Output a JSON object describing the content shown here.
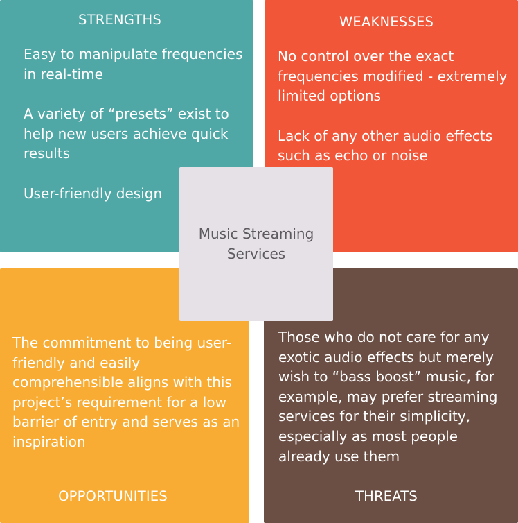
{
  "center": {
    "label": "Music Streaming Services"
  },
  "quadrants": {
    "strengths": {
      "heading": "STRENGTHS",
      "color": "#4fa7a6",
      "items": [
        "Easy to manipulate frequencies in real-time",
        "A variety of “presets” exist to help new users achieve quick results",
        "User-friendly design"
      ]
    },
    "weaknesses": {
      "heading": "WEAKNESSES",
      "color": "#f15638",
      "items": [
        "No control over the exact frequencies modified - extremely limited options",
        "Lack of any other audio effects such as echo or noise"
      ]
    },
    "opportunities": {
      "heading": "OPPORTUNITIES",
      "color": "#f8ac33",
      "items": [
        "The commitment to being user-friendly and easily comprehensible aligns with this project’s requirement for a low barrier of entry and serves as an inspiration"
      ]
    },
    "threats": {
      "heading": "THREATS",
      "color": "#6b4f44",
      "items": [
        "Those who do not care for any exotic audio effects but merely wish to “bass boost” music, for example, may prefer streaming services for their simplicity, especially as most people already use them"
      ]
    }
  }
}
